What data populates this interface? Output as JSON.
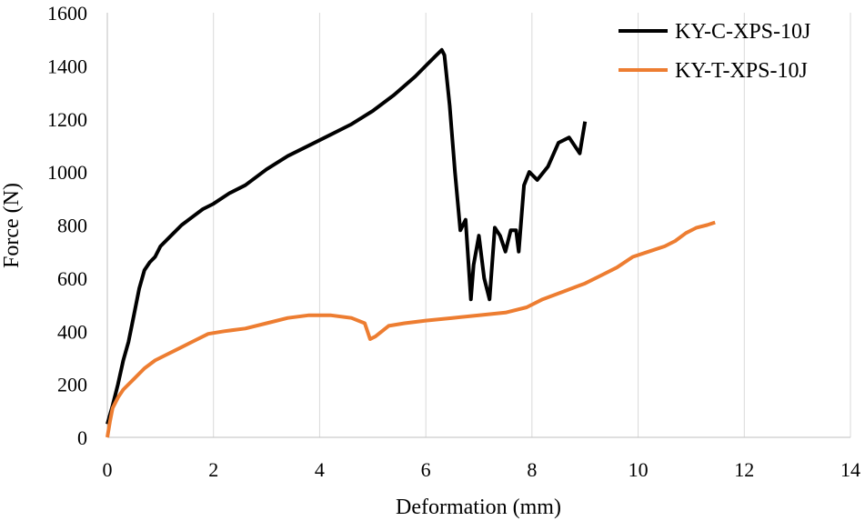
{
  "chart_data": {
    "type": "line",
    "title": "",
    "xlabel": "Deformation (mm)",
    "ylabel": "Force (N)",
    "xlim": [
      0,
      14
    ],
    "ylim": [
      0,
      1600
    ],
    "xticks": [
      0,
      2,
      4,
      6,
      8,
      10,
      12,
      14
    ],
    "yticks": [
      0,
      200,
      400,
      600,
      800,
      1000,
      1200,
      1400,
      1600
    ],
    "grid": "vertical",
    "legend_position": "top-right",
    "series": [
      {
        "name": "KY-C-XPS-10J",
        "color": "#000000",
        "x": [
          0,
          0.1,
          0.2,
          0.3,
          0.4,
          0.5,
          0.6,
          0.7,
          0.8,
          0.9,
          1.0,
          1.2,
          1.4,
          1.6,
          1.8,
          2.0,
          2.3,
          2.6,
          3.0,
          3.4,
          3.8,
          4.2,
          4.6,
          5.0,
          5.4,
          5.8,
          6.0,
          6.2,
          6.3,
          6.35,
          6.45,
          6.55,
          6.65,
          6.75,
          6.85,
          6.9,
          7.0,
          7.1,
          7.2,
          7.3,
          7.4,
          7.5,
          7.6,
          7.7,
          7.75,
          7.85,
          7.95,
          8.1,
          8.3,
          8.5,
          8.7,
          8.9,
          9.0
        ],
        "y": [
          50,
          120,
          200,
          290,
          360,
          460,
          560,
          630,
          660,
          680,
          720,
          760,
          800,
          830,
          860,
          880,
          920,
          950,
          1010,
          1060,
          1100,
          1140,
          1180,
          1230,
          1290,
          1360,
          1400,
          1440,
          1460,
          1440,
          1250,
          1000,
          780,
          820,
          520,
          650,
          760,
          600,
          520,
          790,
          760,
          700,
          780,
          780,
          700,
          950,
          1000,
          970,
          1020,
          1110,
          1130,
          1070,
          1190
        ]
      },
      {
        "name": "KY-T-XPS-10J",
        "color": "#ed7d31",
        "x": [
          0,
          0.05,
          0.1,
          0.2,
          0.3,
          0.5,
          0.7,
          0.9,
          1.1,
          1.3,
          1.6,
          1.9,
          2.2,
          2.6,
          3.0,
          3.4,
          3.8,
          4.2,
          4.6,
          4.85,
          4.95,
          5.05,
          5.3,
          5.6,
          6.0,
          6.5,
          7.0,
          7.5,
          7.9,
          8.2,
          8.6,
          9.0,
          9.3,
          9.6,
          9.9,
          10.2,
          10.5,
          10.7,
          10.9,
          11.1,
          11.3,
          11.45
        ],
        "y": [
          0,
          60,
          110,
          150,
          180,
          220,
          260,
          290,
          310,
          330,
          360,
          390,
          400,
          410,
          430,
          450,
          460,
          460,
          450,
          430,
          370,
          380,
          420,
          430,
          440,
          450,
          460,
          470,
          490,
          520,
          550,
          580,
          610,
          640,
          680,
          700,
          720,
          740,
          770,
          790,
          800,
          810
        ]
      }
    ]
  }
}
